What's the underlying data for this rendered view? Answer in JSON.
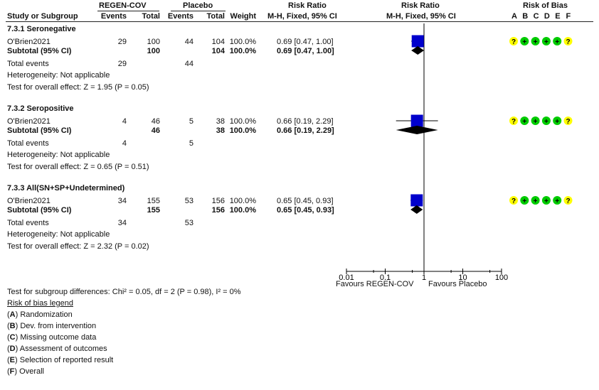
{
  "header": {
    "group1": "REGEN-COV",
    "group2": "Placebo",
    "rr_title": "Risk Ratio",
    "rr_title_plot": "Risk Ratio",
    "bias_title": "Risk of Bias",
    "study_col": "Study or Subgroup",
    "events1": "Events",
    "total1": "Total",
    "events2": "Events",
    "total2": "Total",
    "weight": "Weight",
    "method": "M-H, Fixed, 95% CI",
    "method_plot": "M-H, Fixed, 95% CI",
    "bias_letters": [
      "A",
      "B",
      "C",
      "D",
      "E",
      "F"
    ]
  },
  "subgroups": [
    {
      "title": "7.3.1 Seronegative",
      "study": {
        "name": "O'Brien2021",
        "e1": "29",
        "n1": "100",
        "e2": "44",
        "n2": "104",
        "weight": "100.0%",
        "ci": "0.69 [0.47, 1.00]"
      },
      "subtotal": {
        "label": "Subtotal (95% CI)",
        "n1": "100",
        "n2": "104",
        "weight": "100.0%",
        "ci": "0.69 [0.47, 1.00]"
      },
      "total_events": {
        "label": "Total events",
        "e1": "29",
        "e2": "44"
      },
      "heterogeneity": "Heterogeneity: Not applicable",
      "overall": "Test for overall effect: Z = 1.95 (P = 0.05)",
      "bias": [
        "?",
        "+",
        "+",
        "+",
        "+",
        "?"
      ]
    },
    {
      "title": "7.3.2 Seropositive",
      "study": {
        "name": "O'Brien2021",
        "e1": "4",
        "n1": "46",
        "e2": "5",
        "n2": "38",
        "weight": "100.0%",
        "ci": "0.66 [0.19, 2.29]"
      },
      "subtotal": {
        "label": "Subtotal (95% CI)",
        "n1": "46",
        "n2": "38",
        "weight": "100.0%",
        "ci": "0.66 [0.19, 2.29]"
      },
      "total_events": {
        "label": "Total events",
        "e1": "4",
        "e2": "5"
      },
      "heterogeneity": "Heterogeneity: Not applicable",
      "overall": "Test for overall effect: Z = 0.65 (P = 0.51)",
      "bias": [
        "?",
        "+",
        "+",
        "+",
        "+",
        "?"
      ]
    },
    {
      "title": "7.3.3 All(SN+SP+Undetermined)",
      "study": {
        "name": "O'Brien2021",
        "e1": "34",
        "n1": "155",
        "e2": "53",
        "n2": "156",
        "weight": "100.0%",
        "ci": "0.65 [0.45, 0.93]"
      },
      "subtotal": {
        "label": "Subtotal (95% CI)",
        "n1": "155",
        "n2": "156",
        "weight": "100.0%",
        "ci": "0.65 [0.45, 0.93]"
      },
      "total_events": {
        "label": "Total events",
        "e1": "34",
        "e2": "53"
      },
      "heterogeneity": "Heterogeneity: Not applicable",
      "overall": "Test for overall effect: Z = 2.32 (P = 0.02)",
      "bias": [
        "?",
        "+",
        "+",
        "+",
        "+",
        "?"
      ]
    }
  ],
  "footer": {
    "subgroup_test": "Test for subgroup differences: Chi² = 0.05, df = 2 (P = 0.98), I² = 0%",
    "legend_title": "Risk of bias legend",
    "legend": [
      {
        "letter": "A",
        "text": "Randomization"
      },
      {
        "letter": "B",
        "text": "Dev. from intervention"
      },
      {
        "letter": "C",
        "text": "Missing outcome data"
      },
      {
        "letter": "D",
        "text": "Assessment of outcomes"
      },
      {
        "letter": "E",
        "text": "Selection of reported result"
      },
      {
        "letter": "F",
        "text": "Overall"
      }
    ]
  },
  "axis": {
    "ticks": [
      "0.01",
      "0.1",
      "1",
      "10",
      "100"
    ],
    "favours_left": "Favours REGEN-COV",
    "favours_right": "Favours Placebo"
  },
  "colors": {
    "study_square": "#0000cc",
    "diamond": "#000000",
    "bias_low": "#00cc00",
    "bias_unclear": "#ffff00"
  },
  "chart_data": {
    "type": "forest",
    "scale": "log",
    "xlim": [
      0.01,
      100
    ],
    "xticks": [
      0.01,
      0.1,
      1,
      10,
      100
    ],
    "series": [
      {
        "name": "7.3.1 Seronegative",
        "study_rr": 0.69,
        "study_ci": [
          0.47,
          1.0
        ],
        "subtotal_rr": 0.69,
        "subtotal_ci": [
          0.47,
          1.0
        ]
      },
      {
        "name": "7.3.2 Seropositive",
        "study_rr": 0.66,
        "study_ci": [
          0.19,
          2.29
        ],
        "subtotal_rr": 0.66,
        "subtotal_ci": [
          0.19,
          2.29
        ]
      },
      {
        "name": "7.3.3 All(SN+SP+Undetermined)",
        "study_rr": 0.65,
        "study_ci": [
          0.45,
          0.93
        ],
        "subtotal_rr": 0.65,
        "subtotal_ci": [
          0.45,
          0.93
        ]
      }
    ]
  }
}
